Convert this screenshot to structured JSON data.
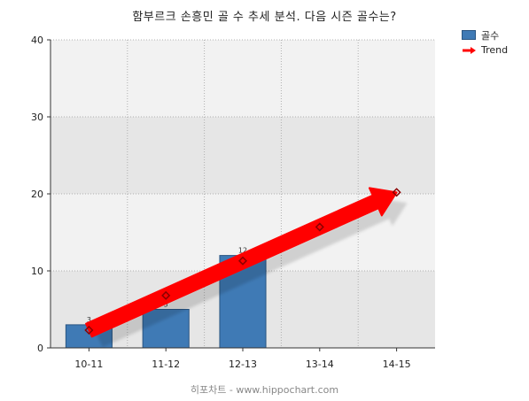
{
  "title": "함부르크 손흥민 골 수 추세 분석. 다음 시즌 골수는?",
  "footer": "히포차트 - www.hippochart.com",
  "legend": {
    "bar_label": "골수",
    "trend_label": "Trend"
  },
  "colors": {
    "bar": "#3f7ab5",
    "bar_border": "#2a5582",
    "trend": "#ff0000",
    "marker": "#8b0000",
    "plot_bg_light": "#f2f2f2",
    "plot_bg_dark": "#e6e6e6"
  },
  "chart_data": {
    "type": "bar",
    "categories": [
      "10-11",
      "11-12",
      "12-13",
      "13-14",
      "14-15"
    ],
    "series": [
      {
        "name": "골수",
        "type": "bar",
        "values": [
          3,
          5,
          12,
          null,
          null
        ]
      },
      {
        "name": "Trend",
        "type": "line",
        "values": [
          2.3,
          6.8,
          11.3,
          15.7,
          20.2
        ]
      }
    ],
    "data_labels": [
      "3",
      "5",
      "12",
      "",
      ""
    ],
    "ylim": [
      0,
      40
    ],
    "yticks": [
      "0",
      "10",
      "20",
      "30",
      "40"
    ],
    "grid": true,
    "legend_position": "top-right"
  }
}
